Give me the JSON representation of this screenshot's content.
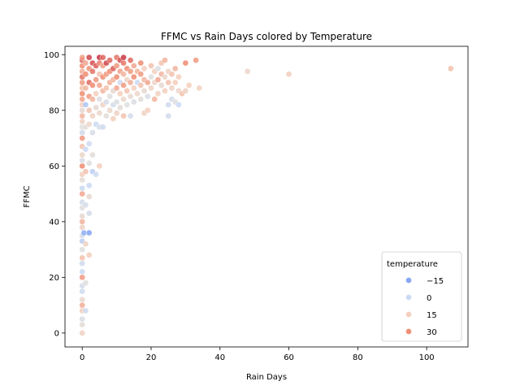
{
  "chart_data": {
    "type": "scatter",
    "title": "FFMC vs Rain Days colored by Temperature",
    "xlabel": "Rain Days",
    "ylabel": "FFMC",
    "xlim": [
      -5,
      112
    ],
    "ylim": [
      -5,
      103
    ],
    "xticks": [
      0,
      20,
      40,
      60,
      80,
      100
    ],
    "yticks": [
      0,
      20,
      40,
      60,
      80,
      100
    ],
    "grid": false,
    "legend": {
      "title": "temperature",
      "placement": "lower-right",
      "entries": [
        {
          "label": "−15",
          "value": -15,
          "color": "#7b9ff2"
        },
        {
          "label": "0",
          "value": 0,
          "color": "#c5d6f2"
        },
        {
          "label": "15",
          "value": 15,
          "color": "#f2cbb7"
        },
        {
          "label": "30",
          "value": 30,
          "color": "#ee8468"
        }
      ]
    },
    "color_scale": {
      "name": "coolwarm",
      "min": -20,
      "max": 40,
      "stops": [
        "#3b4cc0",
        "#7b9ff2",
        "#c5d6f2",
        "#dddcdc",
        "#f2cbb7",
        "#ee8468",
        "#b40426"
      ]
    },
    "points": [
      {
        "x": 0,
        "y": 0,
        "t": 18
      },
      {
        "x": 0,
        "y": 3,
        "t": 12
      },
      {
        "x": 0,
        "y": 5,
        "t": 8
      },
      {
        "x": 0,
        "y": 8,
        "t": 20
      },
      {
        "x": 0,
        "y": 10,
        "t": 25
      },
      {
        "x": 0,
        "y": 12,
        "t": 15
      },
      {
        "x": 0,
        "y": 15,
        "t": 2
      },
      {
        "x": 0,
        "y": 17,
        "t": 5
      },
      {
        "x": 0,
        "y": 20,
        "t": 28
      },
      {
        "x": 0,
        "y": 22,
        "t": 0
      },
      {
        "x": 0,
        "y": 25,
        "t": 3
      },
      {
        "x": 0,
        "y": 27,
        "t": 22
      },
      {
        "x": 0,
        "y": 30,
        "t": 10
      },
      {
        "x": 0,
        "y": 33,
        "t": -2
      },
      {
        "x": 0,
        "y": 35,
        "t": 6
      },
      {
        "x": 0,
        "y": 38,
        "t": 18
      },
      {
        "x": 0,
        "y": 40,
        "t": 24
      },
      {
        "x": 0,
        "y": 42,
        "t": 14
      },
      {
        "x": 0,
        "y": 45,
        "t": 9
      },
      {
        "x": 0,
        "y": 47,
        "t": 4
      },
      {
        "x": 0,
        "y": 50,
        "t": 26
      },
      {
        "x": 0,
        "y": 52,
        "t": 1
      },
      {
        "x": 0,
        "y": 55,
        "t": 12
      },
      {
        "x": 0,
        "y": 57,
        "t": 20
      },
      {
        "x": 0,
        "y": 60,
        "t": 30
      },
      {
        "x": 0,
        "y": 62,
        "t": 7
      },
      {
        "x": 0,
        "y": 64,
        "t": 16
      },
      {
        "x": 0,
        "y": 67,
        "t": 22
      },
      {
        "x": 0,
        "y": 70,
        "t": 28
      },
      {
        "x": 0,
        "y": 72,
        "t": 3
      },
      {
        "x": 0,
        "y": 74,
        "t": 10
      },
      {
        "x": 0,
        "y": 76,
        "t": 18
      },
      {
        "x": 0,
        "y": 78,
        "t": 24
      },
      {
        "x": 0,
        "y": 80,
        "t": 14
      },
      {
        "x": 0,
        "y": 82,
        "t": 20
      },
      {
        "x": 0,
        "y": 84,
        "t": 26
      },
      {
        "x": 0,
        "y": 86,
        "t": 30
      },
      {
        "x": 0,
        "y": 88,
        "t": 22
      },
      {
        "x": 0,
        "y": 90,
        "t": 28
      },
      {
        "x": 0,
        "y": 92,
        "t": 32
      },
      {
        "x": 0,
        "y": 94,
        "t": 25
      },
      {
        "x": 0,
        "y": 96,
        "t": 30
      },
      {
        "x": 0,
        "y": 98,
        "t": 34
      },
      {
        "x": 0,
        "y": 99,
        "t": 27
      },
      {
        "x": 0.5,
        "y": 36,
        "t": -8
      },
      {
        "x": 1,
        "y": 8,
        "t": 2
      },
      {
        "x": 1,
        "y": 18,
        "t": 10
      },
      {
        "x": 1,
        "y": 32,
        "t": 18
      },
      {
        "x": 1,
        "y": 46,
        "t": 5
      },
      {
        "x": 1,
        "y": 58,
        "t": 22
      },
      {
        "x": 1,
        "y": 66,
        "t": 0
      },
      {
        "x": 1,
        "y": 74,
        "t": 12
      },
      {
        "x": 1,
        "y": 82,
        "t": -4
      },
      {
        "x": 1,
        "y": 88,
        "t": 24
      },
      {
        "x": 1,
        "y": 93,
        "t": 30
      },
      {
        "x": 1,
        "y": 97,
        "t": 26
      },
      {
        "x": 2,
        "y": 28,
        "t": 20
      },
      {
        "x": 2,
        "y": 36,
        "t": -10
      },
      {
        "x": 2,
        "y": 43,
        "t": 4
      },
      {
        "x": 2,
        "y": 49,
        "t": 14
      },
      {
        "x": 2,
        "y": 53,
        "t": 0
      },
      {
        "x": 2,
        "y": 61,
        "t": 10
      },
      {
        "x": 2,
        "y": 68,
        "t": 2
      },
      {
        "x": 2,
        "y": 75,
        "t": 16
      },
      {
        "x": 2,
        "y": 80,
        "t": 22
      },
      {
        "x": 2,
        "y": 85,
        "t": 28
      },
      {
        "x": 2,
        "y": 90,
        "t": 33
      },
      {
        "x": 2,
        "y": 95,
        "t": 29
      },
      {
        "x": 2,
        "y": 99,
        "t": 36
      },
      {
        "x": 3,
        "y": 58,
        "t": -2
      },
      {
        "x": 3,
        "y": 64,
        "t": 12
      },
      {
        "x": 3,
        "y": 72,
        "t": 6
      },
      {
        "x": 3,
        "y": 78,
        "t": 18
      },
      {
        "x": 3,
        "y": 84,
        "t": 24
      },
      {
        "x": 3,
        "y": 89,
        "t": 30
      },
      {
        "x": 3,
        "y": 94,
        "t": 32
      },
      {
        "x": 3,
        "y": 97,
        "t": 35
      },
      {
        "x": 4,
        "y": 57,
        "t": 2
      },
      {
        "x": 4,
        "y": 75,
        "t": 0
      },
      {
        "x": 4,
        "y": 81,
        "t": 14
      },
      {
        "x": 4,
        "y": 86,
        "t": 20
      },
      {
        "x": 4,
        "y": 91,
        "t": 28
      },
      {
        "x": 4,
        "y": 96,
        "t": 34
      },
      {
        "x": 5,
        "y": 60,
        "t": 20
      },
      {
        "x": 5,
        "y": 74,
        "t": 4
      },
      {
        "x": 5,
        "y": 79,
        "t": 16
      },
      {
        "x": 5,
        "y": 84,
        "t": 8
      },
      {
        "x": 5,
        "y": 89,
        "t": 26
      },
      {
        "x": 5,
        "y": 93,
        "t": 22
      },
      {
        "x": 5,
        "y": 99,
        "t": 38
      },
      {
        "x": 5,
        "y": 97,
        "t": 31
      },
      {
        "x": 6,
        "y": 74,
        "t": 2
      },
      {
        "x": 6,
        "y": 82,
        "t": 18
      },
      {
        "x": 6,
        "y": 87,
        "t": 24
      },
      {
        "x": 6,
        "y": 92,
        "t": 30
      },
      {
        "x": 6,
        "y": 96,
        "t": 27
      },
      {
        "x": 6,
        "y": 99,
        "t": 33
      },
      {
        "x": 7,
        "y": 78,
        "t": 12
      },
      {
        "x": 7,
        "y": 83,
        "t": 6
      },
      {
        "x": 7,
        "y": 88,
        "t": 22
      },
      {
        "x": 7,
        "y": 93,
        "t": 28
      },
      {
        "x": 7,
        "y": 97,
        "t": 36
      },
      {
        "x": 8,
        "y": 80,
        "t": 16
      },
      {
        "x": 8,
        "y": 85,
        "t": 10
      },
      {
        "x": 8,
        "y": 90,
        "t": 25
      },
      {
        "x": 8,
        "y": 94,
        "t": 30
      },
      {
        "x": 8,
        "y": 98,
        "t": 33
      },
      {
        "x": 9,
        "y": 77,
        "t": 20
      },
      {
        "x": 9,
        "y": 82,
        "t": 4
      },
      {
        "x": 9,
        "y": 87,
        "t": 14
      },
      {
        "x": 9,
        "y": 91,
        "t": 24
      },
      {
        "x": 9,
        "y": 95,
        "t": 34
      },
      {
        "x": 10,
        "y": 79,
        "t": 18
      },
      {
        "x": 10,
        "y": 83,
        "t": 8
      },
      {
        "x": 10,
        "y": 88,
        "t": 26
      },
      {
        "x": 10,
        "y": 92,
        "t": 30
      },
      {
        "x": 10,
        "y": 96,
        "t": 28
      },
      {
        "x": 10,
        "y": 99,
        "t": 32
      },
      {
        "x": 11,
        "y": 81,
        "t": 12
      },
      {
        "x": 11,
        "y": 86,
        "t": 20
      },
      {
        "x": 11,
        "y": 90,
        "t": 2
      },
      {
        "x": 11,
        "y": 94,
        "t": 27
      },
      {
        "x": 11,
        "y": 98,
        "t": 35
      },
      {
        "x": 12,
        "y": 78,
        "t": 22
      },
      {
        "x": 12,
        "y": 84,
        "t": 16
      },
      {
        "x": 12,
        "y": 89,
        "t": 28
      },
      {
        "x": 12,
        "y": 93,
        "t": 24
      },
      {
        "x": 12,
        "y": 97,
        "t": 32
      },
      {
        "x": 12,
        "y": 99,
        "t": 37
      },
      {
        "x": 13,
        "y": 82,
        "t": 10
      },
      {
        "x": 13,
        "y": 87,
        "t": 22
      },
      {
        "x": 13,
        "y": 91,
        "t": 18
      },
      {
        "x": 13,
        "y": 95,
        "t": 30
      },
      {
        "x": 14,
        "y": 78,
        "t": 4
      },
      {
        "x": 14,
        "y": 85,
        "t": 14
      },
      {
        "x": 14,
        "y": 90,
        "t": 25
      },
      {
        "x": 14,
        "y": 94,
        "t": 28
      },
      {
        "x": 14,
        "y": 98,
        "t": 33
      },
      {
        "x": 15,
        "y": 83,
        "t": 8
      },
      {
        "x": 15,
        "y": 88,
        "t": 20
      },
      {
        "x": 15,
        "y": 92,
        "t": 30
      },
      {
        "x": 15,
        "y": 96,
        "t": 26
      },
      {
        "x": 16,
        "y": 86,
        "t": 16
      },
      {
        "x": 16,
        "y": 90,
        "t": 0
      },
      {
        "x": 16,
        "y": 94,
        "t": 24
      },
      {
        "x": 17,
        "y": 84,
        "t": 12
      },
      {
        "x": 17,
        "y": 89,
        "t": 22
      },
      {
        "x": 17,
        "y": 93,
        "t": 28
      },
      {
        "x": 17,
        "y": 97,
        "t": 30
      },
      {
        "x": 18,
        "y": 79,
        "t": 18
      },
      {
        "x": 18,
        "y": 87,
        "t": 14
      },
      {
        "x": 18,
        "y": 91,
        "t": 24
      },
      {
        "x": 18,
        "y": 95,
        "t": 20
      },
      {
        "x": 19,
        "y": 80,
        "t": 20
      },
      {
        "x": 19,
        "y": 85,
        "t": 6
      },
      {
        "x": 19,
        "y": 90,
        "t": 26
      },
      {
        "x": 20,
        "y": 88,
        "t": 18
      },
      {
        "x": 20,
        "y": 92,
        "t": 10
      },
      {
        "x": 20,
        "y": 96,
        "t": 22
      },
      {
        "x": 21,
        "y": 84,
        "t": 24
      },
      {
        "x": 21,
        "y": 90,
        "t": 16
      },
      {
        "x": 21,
        "y": 94,
        "t": 20
      },
      {
        "x": 22,
        "y": 86,
        "t": 18
      },
      {
        "x": 22,
        "y": 91,
        "t": 26
      },
      {
        "x": 22,
        "y": 95,
        "t": 8
      },
      {
        "x": 23,
        "y": 89,
        "t": 14
      },
      {
        "x": 23,
        "y": 93,
        "t": 24
      },
      {
        "x": 23,
        "y": 97,
        "t": 22
      },
      {
        "x": 24,
        "y": 87,
        "t": 20
      },
      {
        "x": 24,
        "y": 92,
        "t": 16
      },
      {
        "x": 24,
        "y": 98,
        "t": 24
      },
      {
        "x": 25,
        "y": 78,
        "t": 4
      },
      {
        "x": 25,
        "y": 82,
        "t": 2
      },
      {
        "x": 25,
        "y": 90,
        "t": 22
      },
      {
        "x": 25,
        "y": 94,
        "t": 18
      },
      {
        "x": 26,
        "y": 84,
        "t": 4
      },
      {
        "x": 26,
        "y": 88,
        "t": 18
      },
      {
        "x": 26,
        "y": 93,
        "t": 22
      },
      {
        "x": 27,
        "y": 83,
        "t": 10
      },
      {
        "x": 27,
        "y": 90,
        "t": 20
      },
      {
        "x": 27,
        "y": 95,
        "t": 24
      },
      {
        "x": 28,
        "y": 82,
        "t": 0
      },
      {
        "x": 28,
        "y": 87,
        "t": 16
      },
      {
        "x": 28,
        "y": 92,
        "t": 20
      },
      {
        "x": 29,
        "y": 86,
        "t": 22
      },
      {
        "x": 30,
        "y": 87,
        "t": 18
      },
      {
        "x": 30,
        "y": 97,
        "t": 30
      },
      {
        "x": 31,
        "y": 89,
        "t": 20
      },
      {
        "x": 33,
        "y": 98,
        "t": 28
      },
      {
        "x": 34,
        "y": 88,
        "t": 18
      },
      {
        "x": 48,
        "y": 94,
        "t": 16
      },
      {
        "x": 60,
        "y": 93,
        "t": 20
      },
      {
        "x": 107,
        "y": 95,
        "t": 22
      }
    ]
  }
}
